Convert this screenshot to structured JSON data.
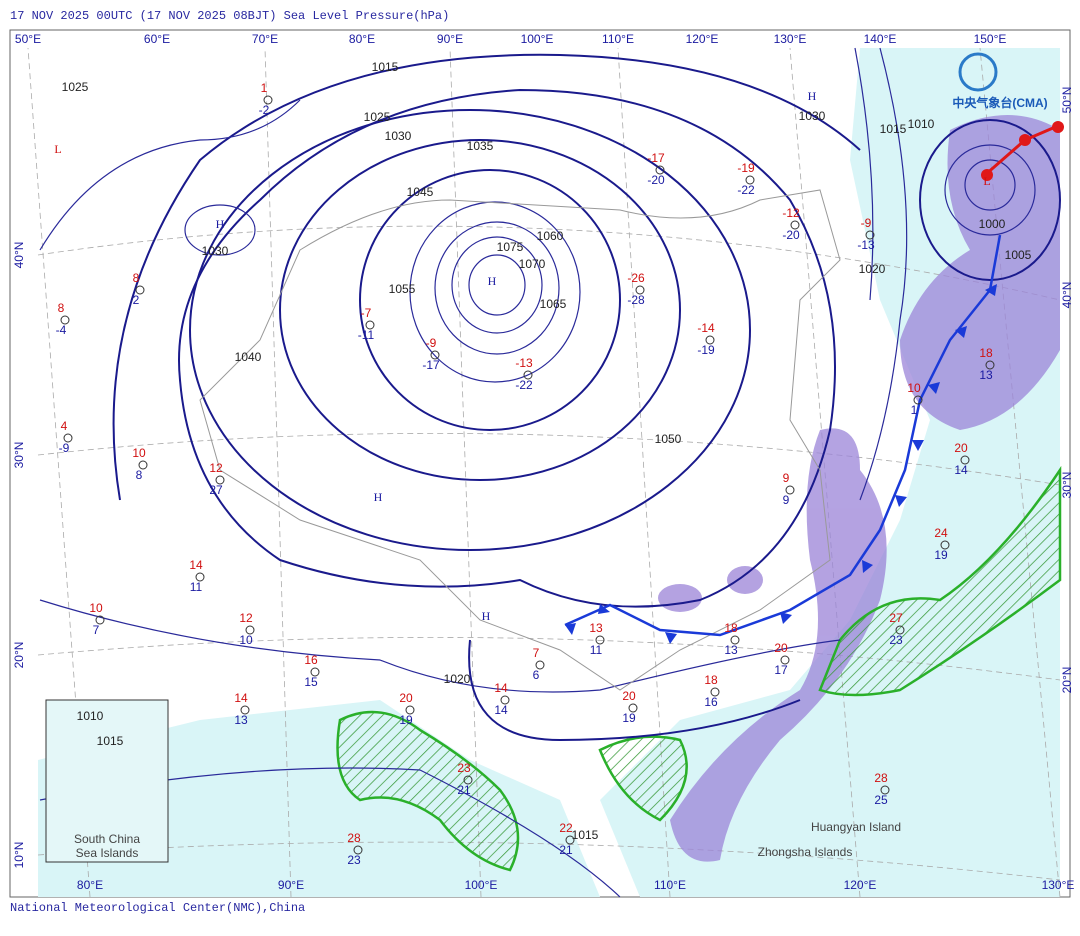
{
  "header": {
    "title": "17 NOV 2025 00UTC  (17 NOV 2025 08BJT) Sea Level Pressure(hPa)"
  },
  "logo": "中央气象台(CMA)",
  "top_longitudes": [
    "50°E",
    "60°E",
    "70°E",
    "80°E",
    "90°E",
    "100°E",
    "110°E",
    "120°E",
    "130°E",
    "140°E",
    "150°E"
  ],
  "bottom_longitudes": [
    "80°E",
    "90°E",
    "100°E",
    "110°E",
    "120°E",
    "130°E"
  ],
  "left_latitudes": [
    "40°N",
    "30°N",
    "20°N",
    "10°N"
  ],
  "right_latitudes": [
    "50°N",
    "40°N",
    "30°N",
    "20°N"
  ],
  "pressure_centers": [
    "H",
    "H",
    "H",
    "H",
    "H",
    "L",
    "L"
  ],
  "isobar_labels": [
    1025,
    1015,
    1025,
    1030,
    1035,
    1045,
    1075,
    1070,
    1060,
    1065,
    1055,
    1040,
    1030,
    1030,
    1050,
    1020,
    1010,
    1015,
    1000,
    1005,
    1020,
    1015,
    1015,
    1010
  ],
  "stations": [
    {
      "temp": 1,
      "dew": -2
    },
    {
      "temp": 8,
      "dew": 2
    },
    {
      "temp": 8,
      "dew": -4
    },
    {
      "temp": -7,
      "dew": -11
    },
    {
      "temp": -9,
      "dew": -17
    },
    {
      "temp": -13,
      "dew": -22
    },
    {
      "temp": -26,
      "dew": -28
    },
    {
      "temp": -17,
      "dew": -20
    },
    {
      "temp": -19,
      "dew": -22
    },
    {
      "temp": -12,
      "dew": -20
    },
    {
      "temp": -9,
      "dew": -13
    },
    {
      "temp": -14,
      "dew": -19
    },
    {
      "temp": 9,
      "dew": 9
    },
    {
      "temp": 10,
      "dew": 1
    },
    {
      "temp": 18,
      "dew": 13
    },
    {
      "temp": 20,
      "dew": 14
    },
    {
      "temp": 24,
      "dew": 19
    },
    {
      "temp": 27,
      "dew": 23
    },
    {
      "temp": 20,
      "dew": 17
    },
    {
      "temp": 18,
      "dew": 13
    },
    {
      "temp": 13,
      "dew": 11
    },
    {
      "temp": 7,
      "dew": 6
    },
    {
      "temp": 14,
      "dew": 14
    },
    {
      "temp": 20,
      "dew": 19
    },
    {
      "temp": 20,
      "dew": 19
    },
    {
      "temp": 18,
      "dew": 16
    },
    {
      "temp": 23,
      "dew": 21
    },
    {
      "temp": 28,
      "dew": 23
    },
    {
      "temp": 22,
      "dew": 21
    },
    {
      "temp": 28,
      "dew": 25
    },
    {
      "temp": 14,
      "dew": 13
    },
    {
      "temp": 16,
      "dew": 15
    },
    {
      "temp": 12,
      "dew": 10
    },
    {
      "temp": 10,
      "dew": 7
    },
    {
      "temp": 14,
      "dew": 11
    },
    {
      "temp": 10,
      "dew": 8
    },
    {
      "temp": 4,
      "dew": -9
    },
    {
      "temp": 12,
      "dew": 27
    }
  ],
  "places": [
    "South China",
    "Sea Islands",
    "Huangyan Island",
    "Zhongsha Islands"
  ],
  "footer": "National Meteorological Center(NMC),China"
}
